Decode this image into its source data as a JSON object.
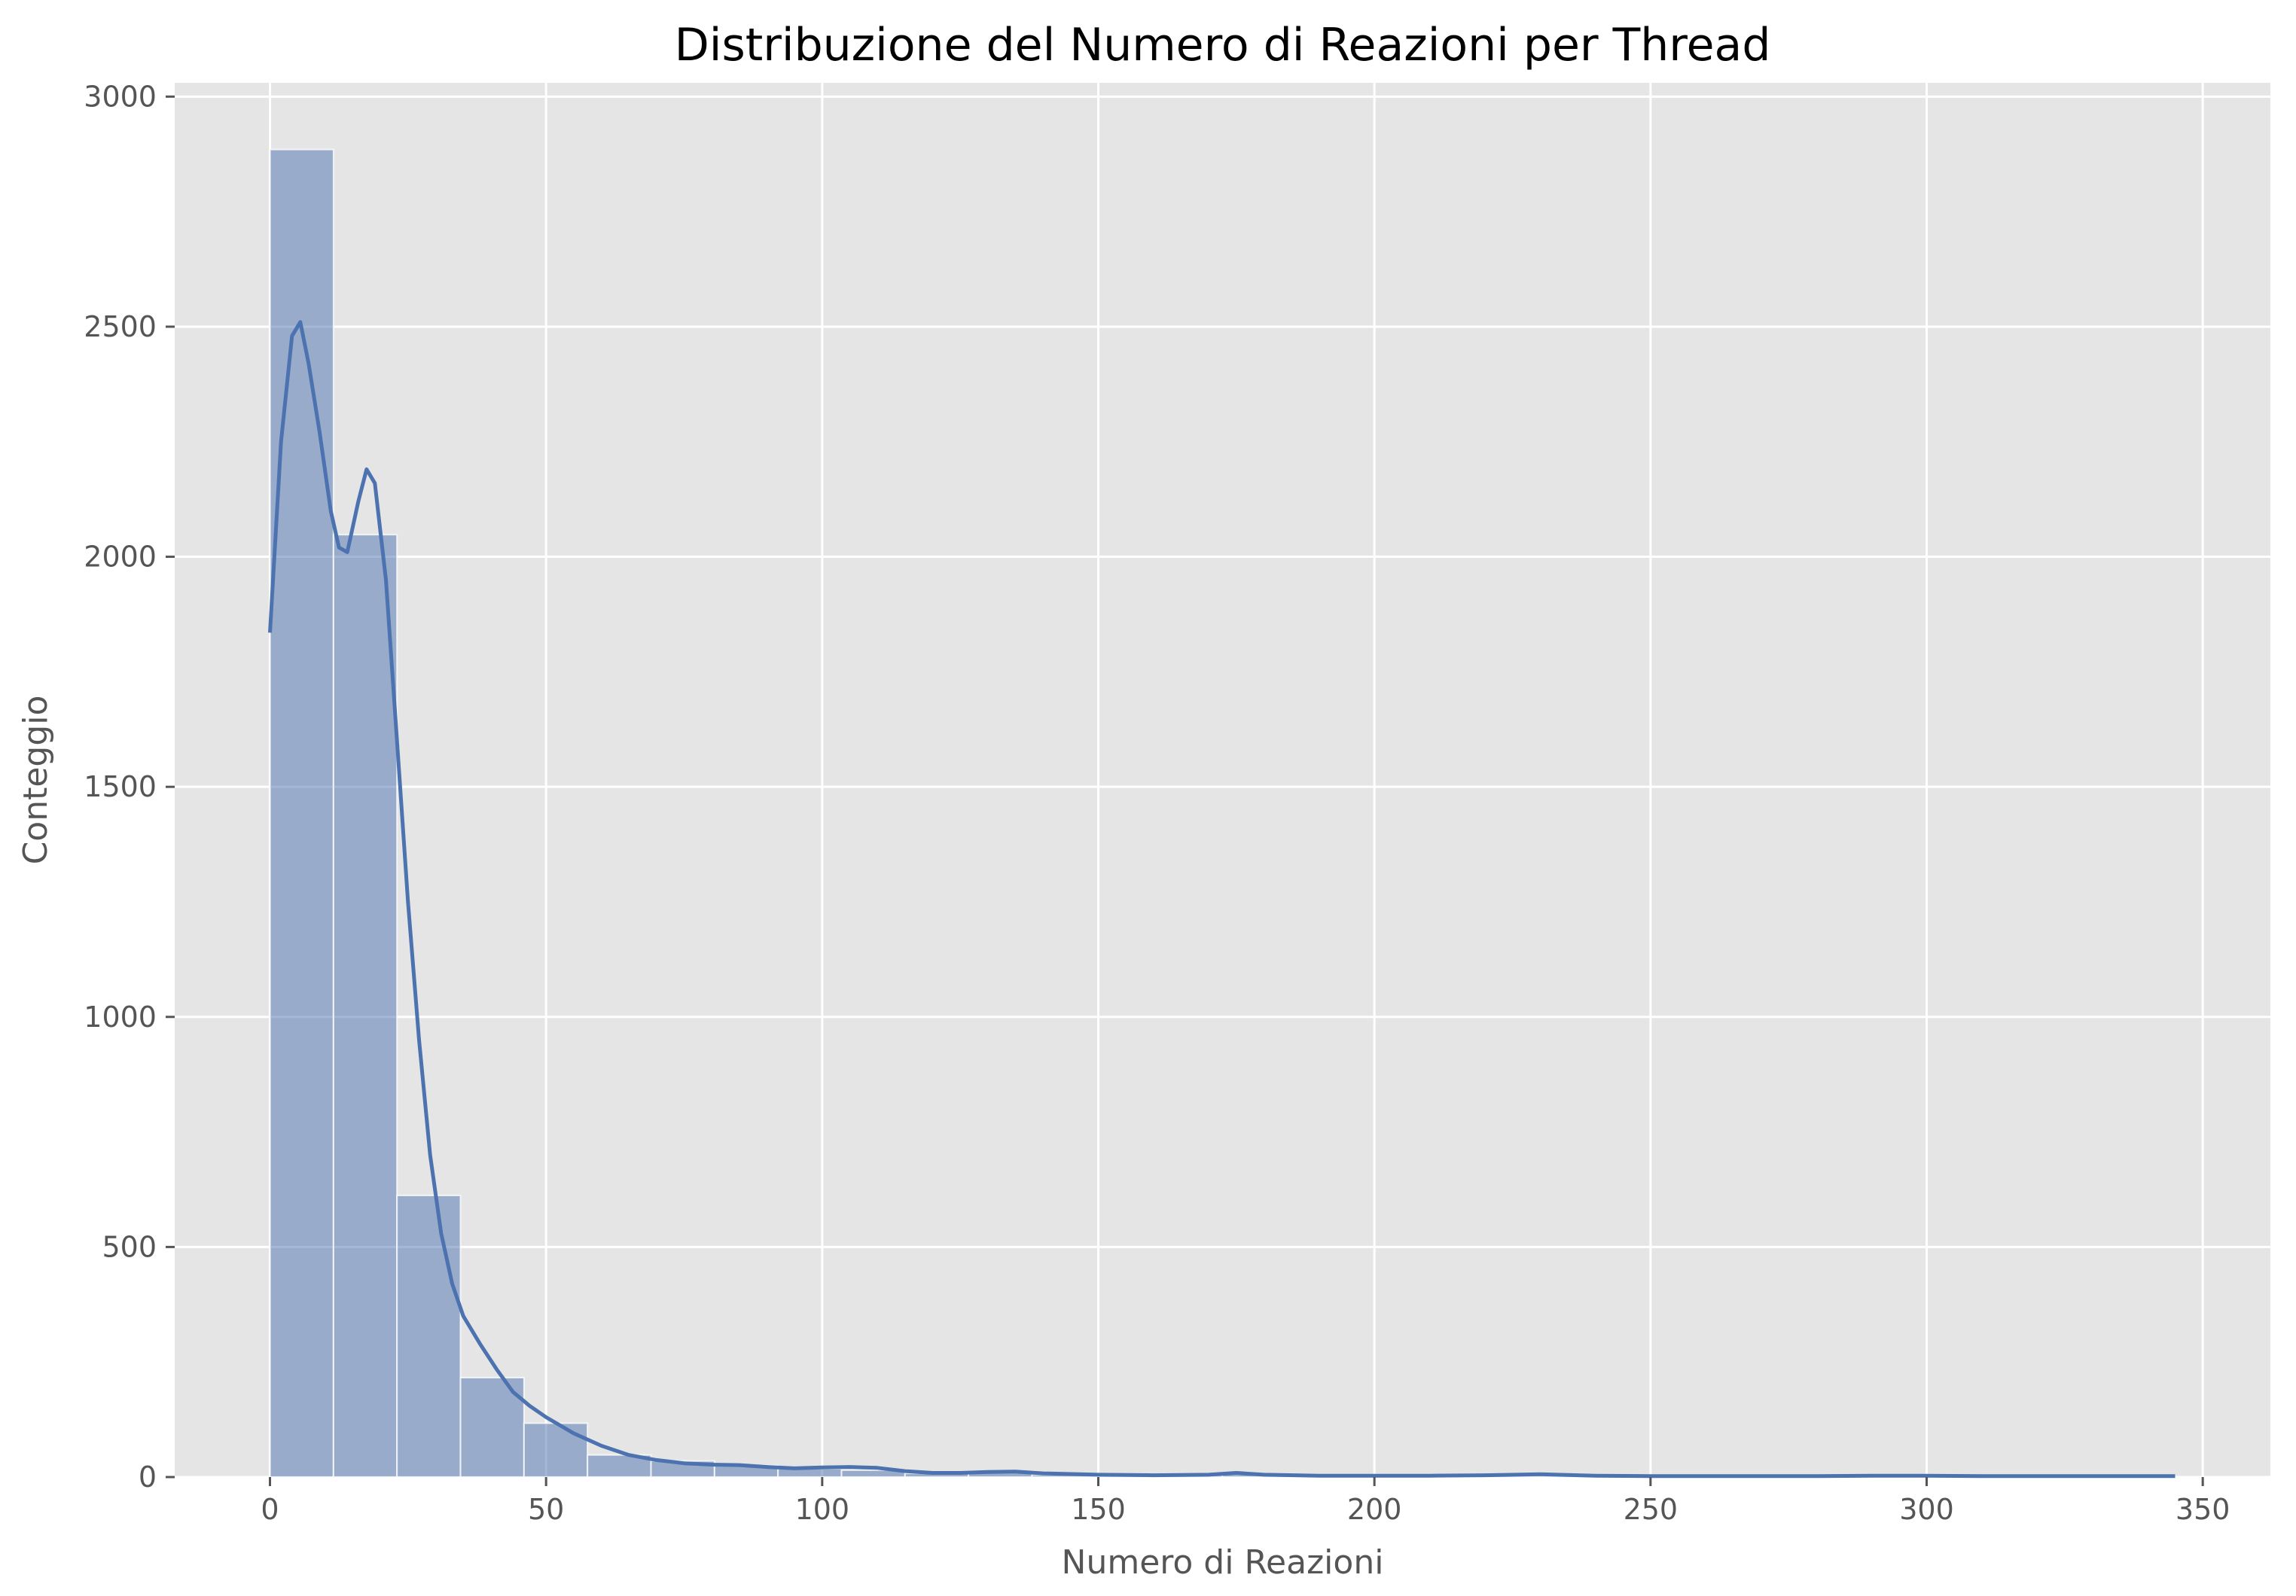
{
  "chart_data": {
    "type": "bar",
    "title": "Distribuzione del Numero di Reazioni per Thread",
    "xlabel": "Numero di Reazioni",
    "ylabel": "Conteggio",
    "xlim": [
      -17.25,
      362.25
    ],
    "ylim": [
      0,
      3030
    ],
    "xticks": [
      0,
      50,
      100,
      150,
      200,
      250,
      300,
      350
    ],
    "yticks": [
      0,
      500,
      1000,
      1500,
      2000,
      2500,
      3000
    ],
    "grid": true,
    "legend": "none",
    "bar_color": "#4c72b0",
    "line_color": "#4c72b0",
    "background": "#e5e5e5",
    "bin_width": 11.5,
    "bins": [
      {
        "x0": 0,
        "x1": 11.5,
        "count": 2885
      },
      {
        "x0": 11.5,
        "x1": 23,
        "count": 2048
      },
      {
        "x0": 23,
        "x1": 34.5,
        "count": 612
      },
      {
        "x0": 34.5,
        "x1": 46,
        "count": 216
      },
      {
        "x0": 46,
        "x1": 57.5,
        "count": 117
      },
      {
        "x0": 57.5,
        "x1": 69,
        "count": 48
      },
      {
        "x0": 69,
        "x1": 80.5,
        "count": 35
      },
      {
        "x0": 80.5,
        "x1": 92,
        "count": 25
      },
      {
        "x0": 92,
        "x1": 103.5,
        "count": 18
      },
      {
        "x0": 103.5,
        "x1": 115,
        "count": 15
      },
      {
        "x0": 115,
        "x1": 126.5,
        "count": 8
      },
      {
        "x0": 126.5,
        "x1": 138,
        "count": 9
      },
      {
        "x0": 138,
        "x1": 149.5,
        "count": 5
      },
      {
        "x0": 149.5,
        "x1": 161,
        "count": 3
      },
      {
        "x0": 161,
        "x1": 172.5,
        "count": 4
      },
      {
        "x0": 172.5,
        "x1": 184,
        "count": 6
      },
      {
        "x0": 184,
        "x1": 195.5,
        "count": 2
      },
      {
        "x0": 195.5,
        "x1": 207,
        "count": 3
      },
      {
        "x0": 207,
        "x1": 218.5,
        "count": 2
      },
      {
        "x0": 218.5,
        "x1": 230,
        "count": 3
      },
      {
        "x0": 230,
        "x1": 241.5,
        "count": 2
      },
      {
        "x0": 241.5,
        "x1": 253,
        "count": 1
      },
      {
        "x0": 253,
        "x1": 264.5,
        "count": 1
      },
      {
        "x0": 264.5,
        "x1": 276,
        "count": 1
      },
      {
        "x0": 276,
        "x1": 287.5,
        "count": 1
      },
      {
        "x0": 287.5,
        "x1": 299,
        "count": 2
      },
      {
        "x0": 299,
        "x1": 310.5,
        "count": 2
      },
      {
        "x0": 310.5,
        "x1": 322,
        "count": 1
      },
      {
        "x0": 322,
        "x1": 333.5,
        "count": 1
      },
      {
        "x0": 333.5,
        "x1": 345,
        "count": 2
      }
    ],
    "kde": {
      "x": [
        0,
        2,
        4,
        5.5,
        7,
        9,
        11,
        12.5,
        14,
        16,
        17.5,
        19,
        21,
        23,
        25,
        27,
        29,
        31,
        33,
        35,
        38,
        41,
        44,
        47,
        50,
        55,
        60,
        65,
        70,
        75,
        80,
        85,
        90,
        95,
        100,
        105,
        110,
        115,
        120,
        125,
        130,
        135,
        140,
        150,
        160,
        170,
        175,
        180,
        190,
        200,
        210,
        220,
        230,
        240,
        250,
        260,
        270,
        280,
        290,
        300,
        310,
        320,
        330,
        340,
        345
      ],
      "y": [
        1835,
        2250,
        2480,
        2510,
        2420,
        2270,
        2100,
        2020,
        2010,
        2120,
        2190,
        2160,
        1950,
        1600,
        1250,
        950,
        700,
        530,
        420,
        350,
        290,
        235,
        185,
        155,
        130,
        95,
        68,
        48,
        37,
        30,
        27,
        26,
        22,
        19,
        21,
        22,
        20,
        13,
        9,
        9,
        11,
        12,
        8,
        5,
        4,
        5,
        9,
        5,
        3,
        3,
        3,
        4,
        6,
        3,
        2,
        2,
        2,
        2,
        3,
        3,
        2,
        2,
        2,
        2,
        2
      ]
    }
  }
}
